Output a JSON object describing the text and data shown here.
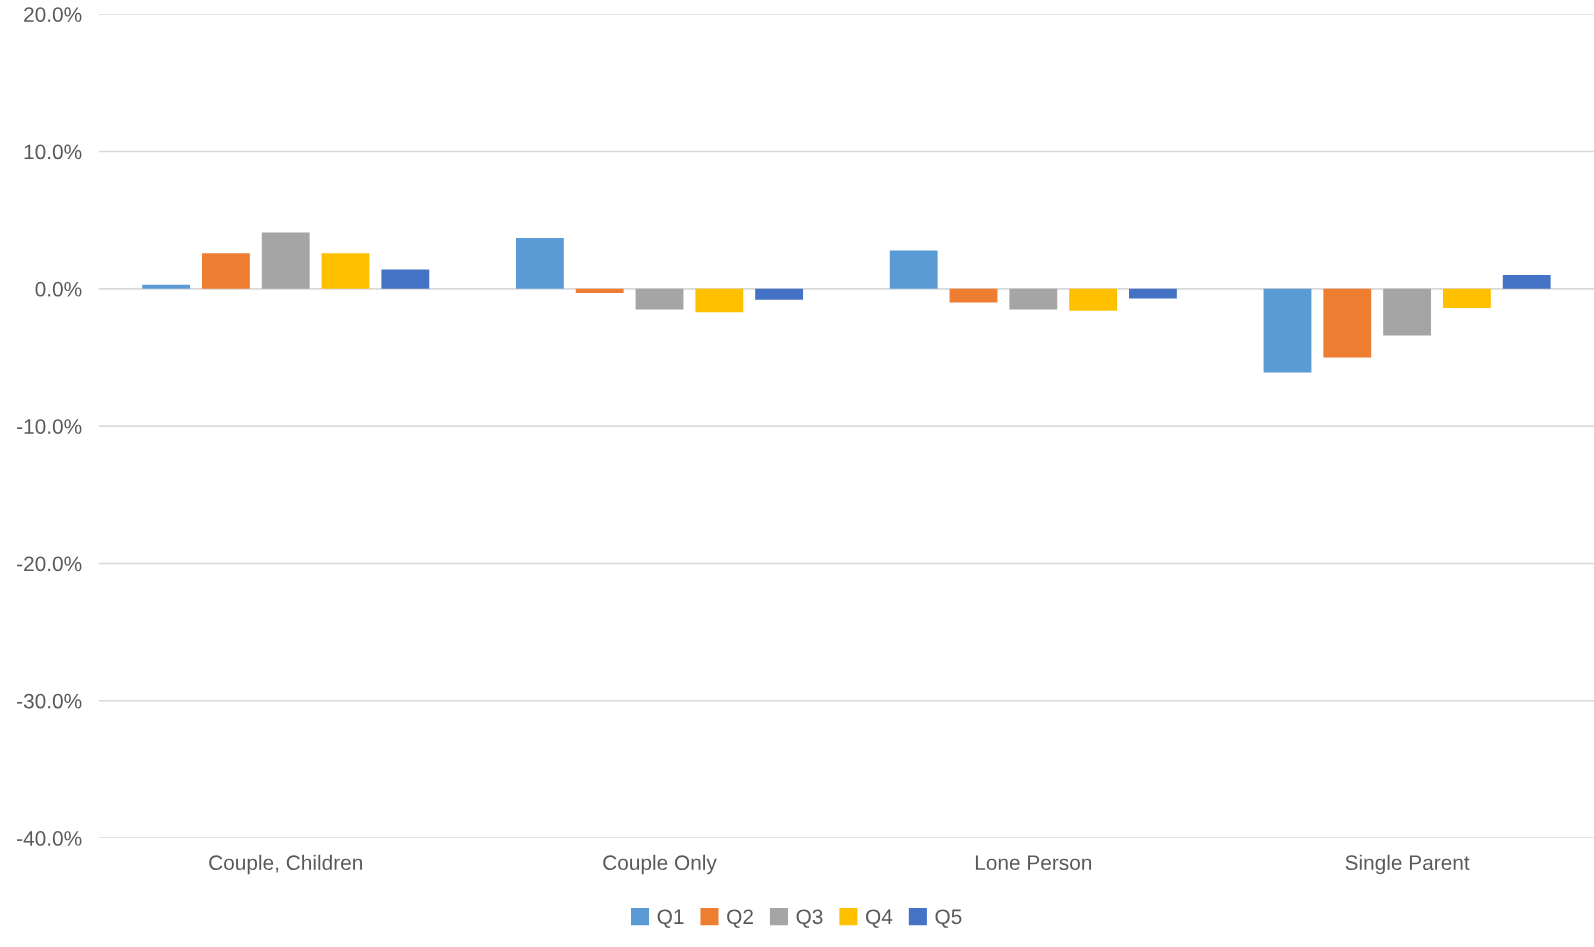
{
  "chart_data": {
    "type": "bar",
    "categories": [
      "Couple, Children",
      "Couple Only",
      "Lone Person",
      "Single Parent"
    ],
    "series": [
      {
        "name": "Q1",
        "color": "#5b9bd5",
        "values": [
          0.3,
          3.7,
          2.8,
          -6.1
        ]
      },
      {
        "name": "Q2",
        "color": "#ed7d31",
        "values": [
          2.6,
          -0.3,
          -1.0,
          -5.0
        ]
      },
      {
        "name": "Q3",
        "color": "#a5a5a5",
        "values": [
          4.1,
          -1.5,
          -1.5,
          -3.4
        ]
      },
      {
        "name": "Q4",
        "color": "#ffc000",
        "values": [
          2.6,
          -1.7,
          -1.6,
          -1.4
        ]
      },
      {
        "name": "Q5",
        "color": "#4472c4",
        "values": [
          1.4,
          -0.8,
          -0.7,
          1.0
        ]
      }
    ],
    "ylim": [
      -40,
      20
    ],
    "yticks": [
      {
        "value": -40,
        "label": "-40.0%"
      },
      {
        "value": -30,
        "label": "-30.0%"
      },
      {
        "value": -20,
        "label": "-20.0%"
      },
      {
        "value": -10,
        "label": "-10.0%"
      },
      {
        "value": 0,
        "label": "0.0%"
      },
      {
        "value": 10,
        "label": "10.0%"
      },
      {
        "value": 20,
        "label": "20.0%"
      }
    ],
    "grid": "y",
    "legend": "bottom"
  }
}
